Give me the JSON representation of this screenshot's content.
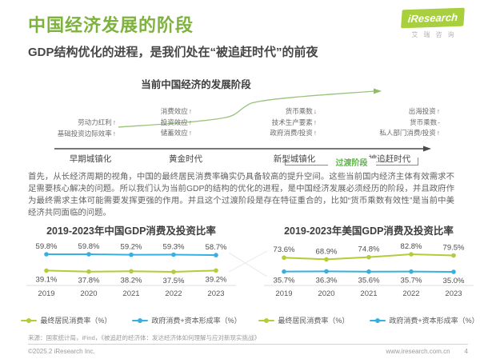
{
  "colors": {
    "brand_green": "#7db33d",
    "chart_green": "#b3cc3a",
    "chart_blue": "#36b0e0",
    "red_arrow": "#e0321e"
  },
  "header": {
    "title": "中国经济发展的阶段",
    "subtitle": "GDP结构优化的进程，是我们处在“被追赶时代”的前夜",
    "logo_text": "iResearch",
    "logo_subtext": "艾瑞咨询"
  },
  "diagram": {
    "title": "当前中国经济的发展阶段",
    "factor_groups": [
      {
        "items": [
          {
            "text": "劳动力红利",
            "arrow": "↑"
          },
          {
            "text": "基础投资边际效率",
            "arrow": "↑"
          }
        ]
      },
      {
        "items": [
          {
            "text": "消费效应",
            "arrow": "↑"
          },
          {
            "text": "投资效应",
            "arrow": "↑"
          },
          {
            "text": "储蓄效应",
            "arrow": "↑"
          }
        ]
      },
      {
        "items": [
          {
            "text": "货币乘数",
            "arrow": "↓",
            "arrow_color": "#e0321e"
          },
          {
            "text": "技术生产要素",
            "arrow": "↑"
          },
          {
            "text": "政府消费/投资",
            "arrow": "↑"
          }
        ]
      },
      {
        "items": [
          {
            "text": "出海投资",
            "arrow": "↑"
          },
          {
            "text": "货币乘数",
            "arrow": "-"
          },
          {
            "text": "私人部门消费/投资",
            "arrow": "↑"
          }
        ]
      }
    ],
    "stages": [
      "早期城镇化",
      "黄金时代",
      "新型城镇化",
      "被追赶时代"
    ],
    "transition_label": "过渡阶段"
  },
  "paragraph": "首先，从长经济周期的视角，中国的最终居民消费率确实仍具备较高的提升空间。这些当前国内经济主体有效需求不足需要核心解决的问题。所以我们认为当前GDP的结构的优化的进程，是中国经济发展必须经历的阶段，并且政府作为最终需求主体可能需要发挥更强的作用。并且这个过渡阶段是存在特征重合的，比如“货币乘数有效性”是当前中美经济共同面临的问题。",
  "chart_data": [
    {
      "type": "line",
      "title": "2019-2023年中国GDP消费及投资比率",
      "categories": [
        "2019",
        "2020",
        "2021",
        "2022",
        "2023"
      ],
      "series": [
        {
          "name": "政府消费+资本形成率（%）",
          "color": "#36b0e0",
          "values": [
            59.8,
            59.8,
            59.2,
            59.3,
            58.7
          ]
        },
        {
          "name": "最终居民消费率（%）",
          "color": "#b3cc3a",
          "values": [
            39.1,
            37.8,
            38.2,
            37.5,
            39.2
          ]
        }
      ],
      "legend": [
        {
          "label": "最终居民消费率（%）",
          "color": "#b3cc3a"
        },
        {
          "label": "政府消费+资本形成率（%）",
          "color": "#36b0e0"
        }
      ],
      "grid": false,
      "legend_position": "bottom"
    },
    {
      "type": "line",
      "title": "2019-2023年美国GDP消费及投资比率",
      "categories": [
        "2019",
        "2020",
        "2021",
        "2022",
        "2023"
      ],
      "series": [
        {
          "name": "最终居民消费率（%）",
          "color": "#b3cc3a",
          "values": [
            73.6,
            68.9,
            74.8,
            82.8,
            79.5
          ]
        },
        {
          "name": "政府消费+资本形成率（%）",
          "color": "#36b0e0",
          "values": [
            35.7,
            36.3,
            35.6,
            35.7,
            35.0
          ]
        }
      ],
      "legend": [
        {
          "label": "最终居民消费率（%）",
          "color": "#b3cc3a"
        },
        {
          "label": "政府消费+资本形成率（%）",
          "color": "#36b0e0"
        }
      ],
      "grid": false,
      "legend_position": "bottom"
    }
  ],
  "footer": {
    "source": "来源：国家统计局，iFind，《被追赶的经济体：发达经济体如何理解与应对新现实挑战》",
    "copyright": "©2025.2 iResearch Inc.",
    "website": "www.iresearch.com.cn",
    "page_number": "4"
  }
}
